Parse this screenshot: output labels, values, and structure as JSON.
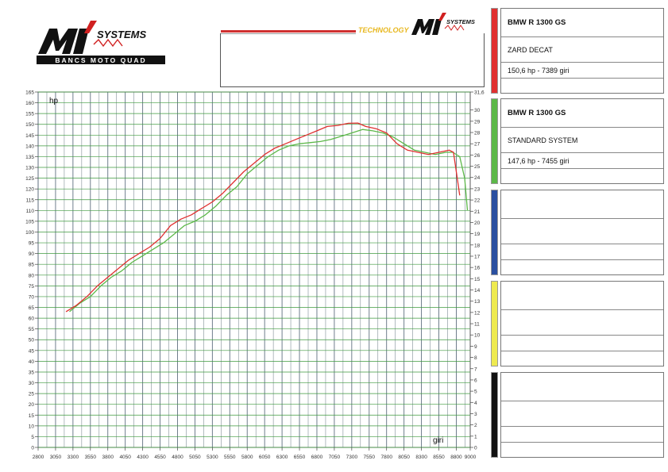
{
  "header": {
    "logo_left_text": "SYSTEMS",
    "logo_left_sub": "BANCS MOTO QUAD",
    "logo_right_text": "TECHNOLOGY",
    "logo_right_brand": "SYSTEMS"
  },
  "panels": [
    {
      "color": "#e03030",
      "title": "BMW R 1300 GS",
      "system": "ZARD DECAT",
      "result": "150,6 hp - 7389 giri",
      "extra": ""
    },
    {
      "color": "#5cb848",
      "title": "BMW R 1300 GS",
      "system": "STANDARD SYSTEM",
      "result": "147,6 hp - 7455 giri",
      "extra": ""
    },
    {
      "color": "#2a4fa0",
      "title": "",
      "system": "",
      "result": "",
      "extra": ""
    },
    {
      "color": "#eeea50",
      "title": "",
      "system": "",
      "result": "",
      "extra": ""
    },
    {
      "color": "#111111",
      "title": "",
      "system": "",
      "result": "",
      "extra": ""
    }
  ],
  "chart_data": {
    "type": "line",
    "xlabel": "giri",
    "ylabel": "hp",
    "xlim": [
      2800,
      9000
    ],
    "ylim": [
      0,
      165
    ],
    "y2lim": [
      0,
      31.6
    ],
    "x_tick_labels": [
      "2800",
      "3050",
      "3300",
      "3550",
      "3800",
      "4050",
      "4300",
      "4550",
      "4800",
      "5050",
      "5300",
      "5550",
      "5800",
      "6050",
      "6300",
      "6550",
      "6800",
      "7050",
      "7300",
      "7550",
      "7800",
      "8050",
      "8300",
      "8550",
      "8800",
      "9000"
    ],
    "y_tick_labels": [
      "0",
      "5",
      "10",
      "15",
      "20",
      "25",
      "30",
      "35",
      "40",
      "45",
      "50",
      "55",
      "60",
      "65",
      "70",
      "75",
      "80",
      "85",
      "90",
      "95",
      "100",
      "105",
      "110",
      "115",
      "120",
      "125",
      "130",
      "135",
      "140",
      "145",
      "150",
      "155",
      "160",
      "165"
    ],
    "y2_tick_labels": [
      "0",
      "1",
      "2",
      "3",
      "4",
      "5",
      "6",
      "7",
      "8",
      "9",
      "10",
      "11",
      "12",
      "13",
      "14",
      "15",
      "16",
      "17",
      "18",
      "19",
      "20",
      "21",
      "22",
      "23",
      "24",
      "25",
      "26",
      "27",
      "28",
      "29",
      "30",
      "31,6"
    ],
    "grid": true,
    "series": [
      {
        "name": "ZARD DECAT",
        "color": "#e03030",
        "x": [
          3200,
          3350,
          3500,
          3650,
          3800,
          3950,
          4100,
          4250,
          4400,
          4550,
          4700,
          4850,
          5000,
          5150,
          5300,
          5450,
          5600,
          5750,
          5900,
          6050,
          6200,
          6350,
          6500,
          6650,
          6800,
          6950,
          7100,
          7250,
          7389,
          7500,
          7650,
          7800,
          7950,
          8100,
          8250,
          8400,
          8550,
          8700,
          8760,
          8800,
          8850
        ],
        "y": [
          63,
          66,
          70,
          75,
          79,
          83,
          87,
          90,
          93,
          97,
          103,
          106,
          108,
          111,
          114,
          118,
          123,
          128,
          132,
          136,
          139,
          141,
          143,
          145,
          147,
          149,
          149.5,
          150.5,
          150.6,
          149,
          148,
          146,
          141,
          138,
          137,
          136,
          137,
          138,
          137,
          128,
          117
        ]
      },
      {
        "name": "STANDARD SYSTEM",
        "color": "#5cb848",
        "x": [
          3250,
          3400,
          3550,
          3700,
          3850,
          4000,
          4150,
          4300,
          4450,
          4600,
          4750,
          4900,
          5050,
          5200,
          5350,
          5500,
          5650,
          5800,
          5950,
          6100,
          6250,
          6400,
          6550,
          6700,
          6850,
          7000,
          7150,
          7300,
          7455,
          7600,
          7750,
          7900,
          8050,
          8200,
          8350,
          8500,
          8650,
          8750,
          8850,
          8920,
          8960
        ],
        "y": [
          63,
          67,
          70,
          75,
          79,
          82,
          86,
          89,
          92,
          95,
          99,
          103,
          105,
          108,
          112,
          117,
          121,
          127,
          131,
          135,
          138,
          140,
          141,
          141.5,
          142,
          143,
          144.5,
          146,
          147.6,
          147,
          146,
          144,
          141,
          138,
          137,
          136,
          137,
          137,
          135,
          125,
          110
        ]
      }
    ]
  }
}
